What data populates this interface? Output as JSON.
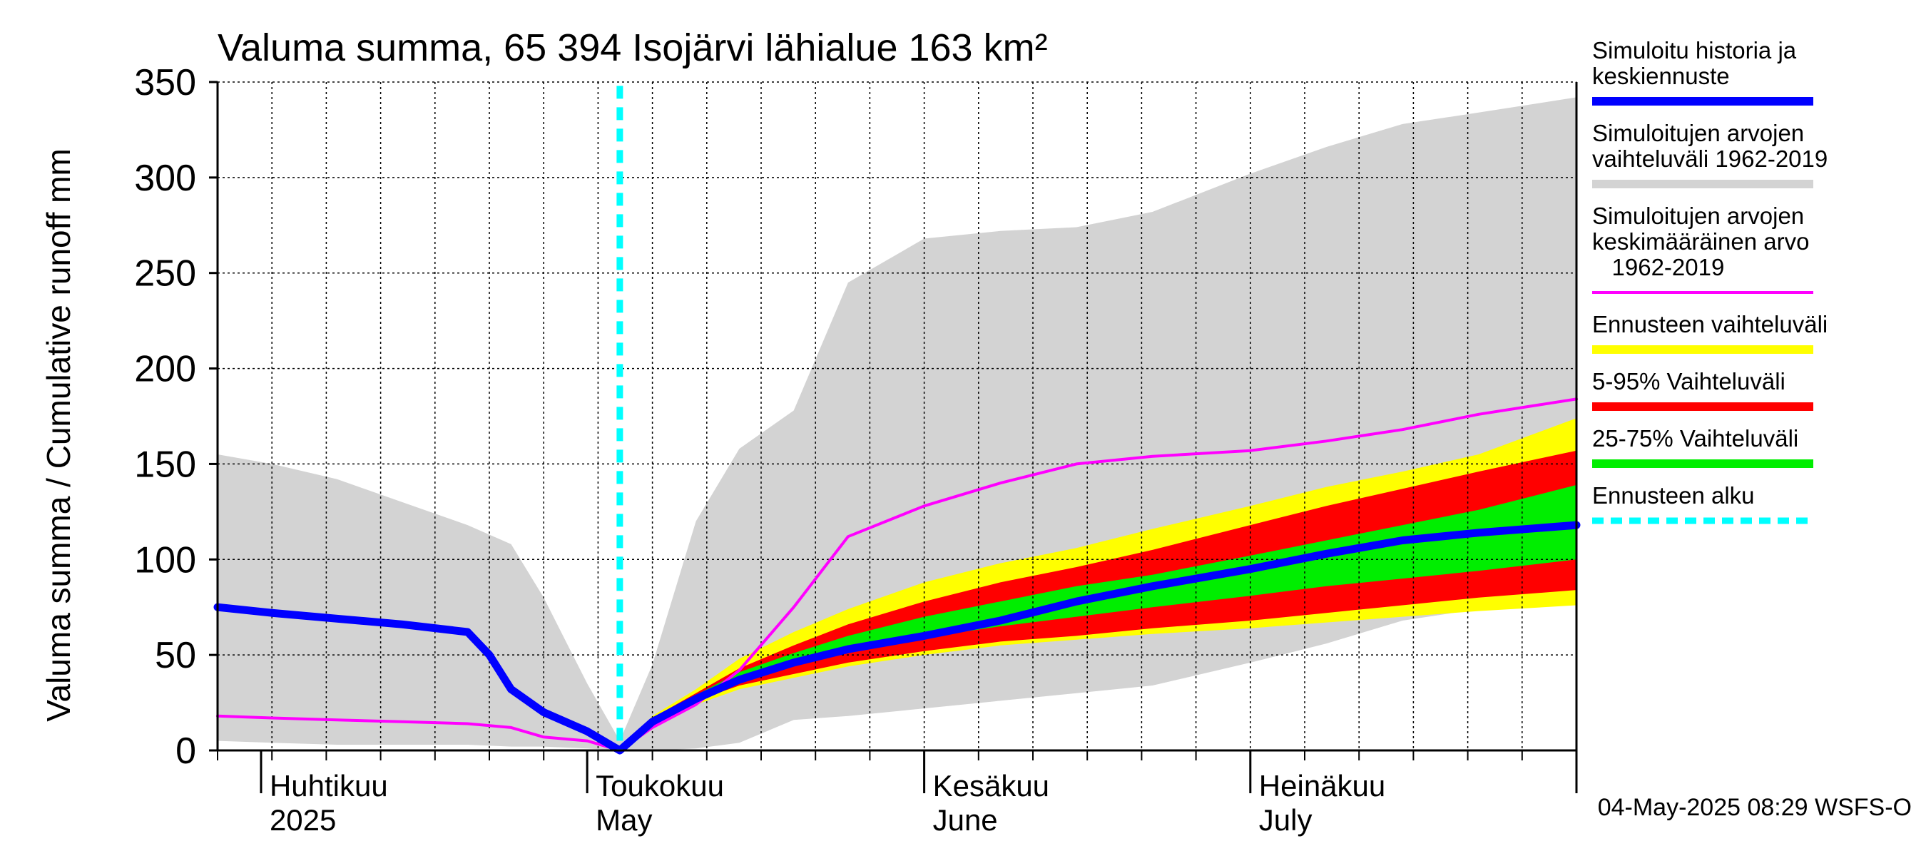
{
  "chart_data": {
    "type": "area",
    "title": "Valuma summa, 65 394 Isojärvi lähialue 163 km²",
    "ylabel": "Valuma summa / Cumulative runoff    mm",
    "ylim": [
      0,
      350
    ],
    "yticks": [
      0,
      50,
      100,
      150,
      200,
      250,
      300,
      350
    ],
    "x_range": [
      "2025-03-28",
      "2025-07-31"
    ],
    "grid": true,
    "legend_position": "right",
    "forecast_start": "2025-05-04",
    "month_labels": [
      {
        "date": "2025-04-01",
        "fi": "Huhtikuu",
        "en": "2025"
      },
      {
        "date": "2025-05-01",
        "fi": "Toukokuu",
        "en": "May"
      },
      {
        "date": "2025-06-01",
        "fi": "Kesäkuu",
        "en": "June"
      },
      {
        "date": "2025-07-01",
        "fi": "Heinäkuu",
        "en": "July"
      }
    ],
    "footer_timestamp": "04-May-2025 08:29 WSFS-O",
    "series": [
      {
        "name": "Simuloitujen arvojen vaihteluväli 1962-2019",
        "kind": "band",
        "color": "#d3d3d3",
        "x": [
          "2025-03-28",
          "2025-04-02",
          "2025-04-08",
          "2025-04-14",
          "2025-04-20",
          "2025-04-24",
          "2025-04-27",
          "2025-05-01",
          "2025-05-04",
          "2025-05-07",
          "2025-05-11",
          "2025-05-15",
          "2025-05-20",
          "2025-05-25",
          "2025-06-01",
          "2025-06-08",
          "2025-06-15",
          "2025-06-22",
          "2025-07-01",
          "2025-07-08",
          "2025-07-15",
          "2025-07-22",
          "2025-07-31"
        ],
        "low": [
          5,
          4,
          3,
          3,
          3,
          2,
          2,
          1,
          0,
          0,
          1,
          4,
          16,
          18,
          22,
          26,
          30,
          34,
          46,
          56,
          68,
          74,
          78
        ],
        "high": [
          155,
          150,
          142,
          130,
          118,
          108,
          80,
          35,
          5,
          45,
          120,
          158,
          178,
          245,
          268,
          272,
          274,
          282,
          302,
          316,
          328,
          334,
          342
        ]
      },
      {
        "name": "Ennusteen vaihteluväli",
        "kind": "band",
        "color": "#ffff00",
        "x": [
          "2025-05-04",
          "2025-05-07",
          "2025-05-11",
          "2025-05-15",
          "2025-05-20",
          "2025-05-25",
          "2025-06-01",
          "2025-06-08",
          "2025-06-15",
          "2025-06-22",
          "2025-07-01",
          "2025-07-08",
          "2025-07-15",
          "2025-07-22",
          "2025-07-31"
        ],
        "low": [
          0,
          14,
          24,
          32,
          38,
          44,
          50,
          55,
          58,
          61,
          64,
          67,
          70,
          73,
          76
        ],
        "high": [
          0,
          18,
          32,
          48,
          62,
          74,
          88,
          98,
          106,
          116,
          128,
          138,
          146,
          155,
          174
        ]
      },
      {
        "name": "5-95% Vaihteluväli",
        "kind": "band",
        "color": "#ff0000",
        "x": [
          "2025-05-04",
          "2025-05-07",
          "2025-05-11",
          "2025-05-15",
          "2025-05-20",
          "2025-05-25",
          "2025-06-01",
          "2025-06-08",
          "2025-06-15",
          "2025-06-22",
          "2025-07-01",
          "2025-07-08",
          "2025-07-15",
          "2025-07-22",
          "2025-07-31"
        ],
        "low": [
          0,
          15,
          26,
          34,
          40,
          46,
          52,
          57,
          60,
          64,
          68,
          72,
          76,
          80,
          84
        ],
        "high": [
          0,
          17,
          30,
          43,
          55,
          66,
          78,
          88,
          96,
          105,
          118,
          128,
          137,
          146,
          157
        ]
      },
      {
        "name": "25-75% Vaihteluväli",
        "kind": "band",
        "color": "#00ee00",
        "x": [
          "2025-05-04",
          "2025-05-07",
          "2025-05-11",
          "2025-05-15",
          "2025-05-20",
          "2025-05-25",
          "2025-06-01",
          "2025-06-08",
          "2025-06-15",
          "2025-06-22",
          "2025-07-01",
          "2025-07-08",
          "2025-07-15",
          "2025-07-22",
          "2025-07-31"
        ],
        "low": [
          0,
          16,
          28,
          38,
          46,
          52,
          59,
          65,
          70,
          75,
          81,
          86,
          90,
          94,
          100
        ],
        "high": [
          0,
          16,
          29,
          41,
          51,
          60,
          70,
          78,
          86,
          92,
          102,
          110,
          118,
          126,
          139
        ]
      },
      {
        "name": "Simuloitujen arvojen keskimääräinen arvo 1962-2019",
        "kind": "line",
        "color": "#ff00ff",
        "x": [
          "2025-03-28",
          "2025-04-02",
          "2025-04-08",
          "2025-04-14",
          "2025-04-20",
          "2025-04-24",
          "2025-04-27",
          "2025-05-01",
          "2025-05-04",
          "2025-05-07",
          "2025-05-11",
          "2025-05-15",
          "2025-05-20",
          "2025-05-25",
          "2025-06-01",
          "2025-06-08",
          "2025-06-15",
          "2025-06-22",
          "2025-07-01",
          "2025-07-08",
          "2025-07-15",
          "2025-07-22",
          "2025-07-31"
        ],
        "y": [
          18,
          17,
          16,
          15,
          14,
          12,
          7,
          5,
          0,
          12,
          24,
          42,
          75,
          112,
          128,
          140,
          150,
          154,
          157,
          162,
          168,
          176,
          184
        ]
      },
      {
        "name": "Simuloitu historia ja keskiennuste",
        "kind": "line",
        "color": "#0000ff",
        "x": [
          "2025-03-28",
          "2025-04-02",
          "2025-04-08",
          "2025-04-14",
          "2025-04-20",
          "2025-04-22",
          "2025-04-24",
          "2025-04-27",
          "2025-05-01",
          "2025-05-04",
          "2025-05-07",
          "2025-05-11",
          "2025-05-15",
          "2025-05-20",
          "2025-05-25",
          "2025-06-01",
          "2025-06-08",
          "2025-06-15",
          "2025-06-22",
          "2025-07-01",
          "2025-07-08",
          "2025-07-15",
          "2025-07-22",
          "2025-07-31"
        ],
        "y": [
          75,
          72,
          69,
          66,
          62,
          50,
          32,
          20,
          10,
          0,
          15,
          27,
          37,
          46,
          53,
          60,
          68,
          78,
          86,
          95,
          103,
          110,
          114,
          118
        ]
      }
    ]
  },
  "legend": {
    "entries": [
      {
        "lines": [
          "Simuloitu historia ja",
          "keskiennuste"
        ],
        "color": "#0000ff",
        "style": "solid"
      },
      {
        "lines": [
          "Simuloitujen arvojen",
          "vaihteluväli 1962-2019"
        ],
        "color": "#d3d3d3",
        "style": "solid"
      },
      {
        "lines": [
          "Simuloitujen arvojen",
          "keskimääräinen arvo",
          "   1962-2019"
        ],
        "color": "#ff00ff",
        "style": "thin"
      },
      {
        "lines": [
          "Ennusteen vaihteluväli"
        ],
        "color": "#ffff00",
        "style": "solid"
      },
      {
        "lines": [
          "5-95% Vaihteluväli"
        ],
        "color": "#ff0000",
        "style": "solid"
      },
      {
        "lines": [
          "25-75% Vaihteluväli"
        ],
        "color": "#00ee00",
        "style": "solid"
      },
      {
        "lines": [
          "Ennusteen alku"
        ],
        "color": "#00ffff",
        "style": "dashed"
      }
    ]
  }
}
